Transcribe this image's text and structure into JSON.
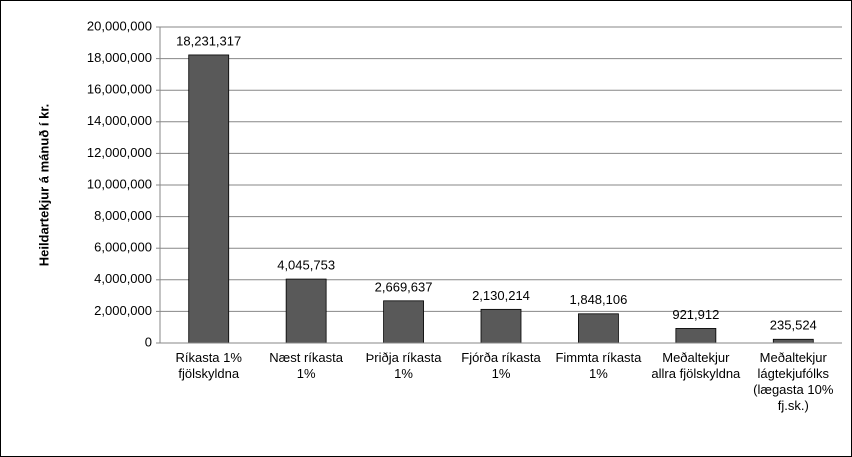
{
  "chart_data": {
    "type": "bar",
    "y_axis_label": "Heildartekjur á mánuð í kr.",
    "categories": [
      "Ríkasta 1% fjölskyldna",
      "Næst ríkasta 1%",
      "Þriðja ríkasta 1%",
      "Fjórða ríkasta 1%",
      "Fimmta ríkasta 1%",
      "Meðaltekjur allra fjölskyldna",
      "Meðaltekjur lágtekjufólks (lægasta 10% fj.sk.)"
    ],
    "values": [
      18231317,
      4045753,
      2669637,
      2130214,
      1848106,
      921912,
      235524
    ],
    "value_labels": [
      "18,231,317",
      "4,045,753",
      "2,669,637",
      "2,130,214",
      "1,848,106",
      "921,912",
      "235,524"
    ],
    "color": "#595959",
    "ylim": [
      0,
      20000000
    ],
    "yticks": [
      0,
      {
        "value": 2000000,
        "label": "2,000,000"
      },
      {
        "value": 4000000,
        "label": "4,000,000"
      },
      {
        "value": 6000000,
        "label": "6,000,000"
      },
      {
        "value": 8000000,
        "label": "8,000,000"
      },
      {
        "value": 10000000,
        "label": "10,000,000"
      },
      {
        "value": 12000000,
        "label": "12,000,000"
      },
      {
        "value": 14000000,
        "label": "14,000,000"
      },
      {
        "value": 16000000,
        "label": "16,000,000"
      },
      {
        "value": 18000000,
        "label": "18,000,000"
      },
      {
        "value": 20000000,
        "label": "20,000,000"
      }
    ],
    "grid": true
  }
}
